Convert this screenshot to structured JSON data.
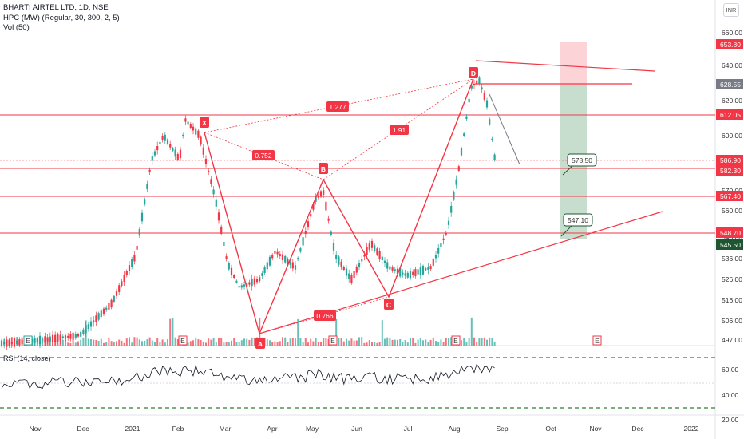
{
  "header": {
    "symbol": "BHARTI AIRTEL LTD, 1D, NSE",
    "indicator": "HPC (MW) (Regular, 30, 300, 2, 5)",
    "volume": "Vol (50)",
    "currency": "INR"
  },
  "rsi": {
    "label": "RSI (14, close)"
  },
  "price_axis": {
    "ticks": [
      "660.00",
      "640.00",
      "620.00",
      "600.00",
      "580.00",
      "570.00",
      "560.00",
      "546.00",
      "536.00",
      "526.00",
      "516.00",
      "506.00",
      "497.00"
    ],
    "badges": [
      {
        "text": "653.80",
        "color": "#f23645"
      },
      {
        "text": "628.55",
        "color": "#787b86"
      },
      {
        "text": "612.05",
        "color": "#f23645"
      },
      {
        "text": "586.90",
        "color": "#f23645"
      },
      {
        "text": "582.30",
        "color": "#f23645"
      },
      {
        "text": "567.40",
        "color": "#f23645"
      },
      {
        "text": "548.70",
        "color": "#f23645"
      },
      {
        "text": "545.50",
        "color": "#1e5631"
      }
    ]
  },
  "rsi_axis": {
    "ticks": [
      "60.00",
      "40.00",
      "20.00"
    ]
  },
  "time_axis": {
    "labels": [
      "Nov",
      "Dec",
      "2021",
      "Feb",
      "Mar",
      "Apr",
      "May",
      "Jun",
      "Jul",
      "Aug",
      "Sep",
      "Oct",
      "Nov",
      "Dec",
      "2022"
    ]
  },
  "pattern": {
    "points": [
      "X",
      "A",
      "B",
      "C",
      "D"
    ],
    "ratios": [
      "1.277",
      "0.752",
      "1.91",
      "0.766"
    ]
  },
  "callouts": [
    "578.50",
    "547.10"
  ],
  "event_icon": "E",
  "colors": {
    "red": "#f23645",
    "green": "#1e5631",
    "volume_green": "#26a69a"
  }
}
